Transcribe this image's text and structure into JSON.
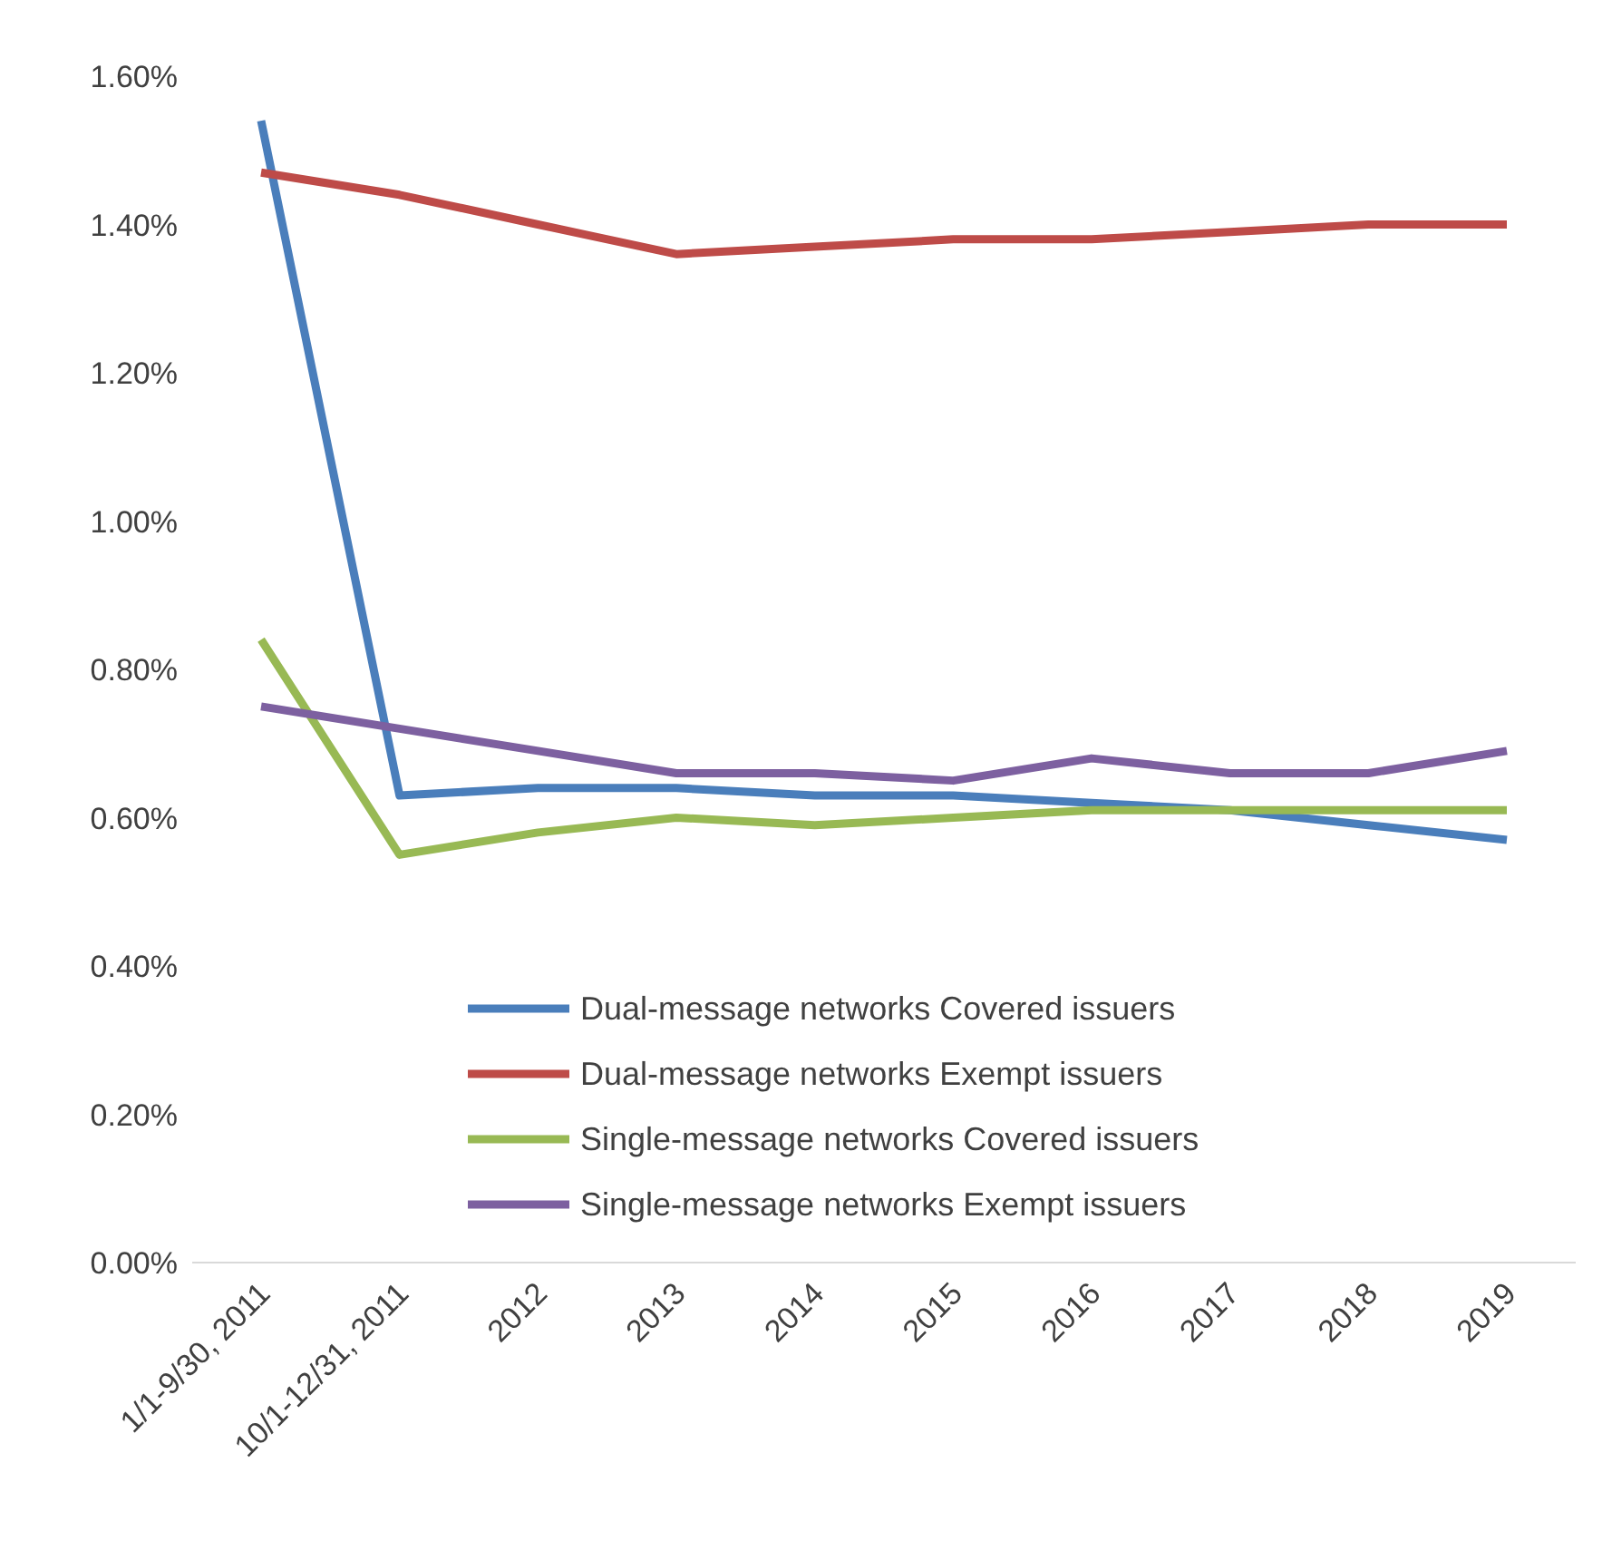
{
  "chart_data": {
    "type": "line",
    "categories": [
      "1/1-9/30, 2011",
      "10/1-12/31, 2011",
      "2012",
      "2013",
      "2014",
      "2015",
      "2016",
      "2017",
      "2018",
      "2019"
    ],
    "series": [
      {
        "name": "Dual-message networks Covered issuers",
        "color": "#4a7ebb",
        "values": [
          1.54,
          0.63,
          0.64,
          0.64,
          0.63,
          0.63,
          0.62,
          0.61,
          0.59,
          0.57
        ]
      },
      {
        "name": "Dual-message networks Exempt issuers",
        "color": "#be4b48",
        "values": [
          1.47,
          1.44,
          1.4,
          1.36,
          1.37,
          1.38,
          1.38,
          1.39,
          1.4,
          1.4
        ]
      },
      {
        "name": "Single-message networks Covered issuers",
        "color": "#98b954",
        "values": [
          0.84,
          0.55,
          0.58,
          0.6,
          0.59,
          0.6,
          0.61,
          0.61,
          0.61,
          0.61
        ]
      },
      {
        "name": "Single-message networks Exempt issuers",
        "color": "#7d60a0",
        "values": [
          0.75,
          0.72,
          0.69,
          0.66,
          0.66,
          0.65,
          0.68,
          0.66,
          0.66,
          0.69
        ]
      }
    ],
    "ylim": [
      0,
      1.6
    ],
    "yticks": [
      {
        "value": 0,
        "label": "0.00%"
      },
      {
        "value": 0.2,
        "label": "0.20%"
      },
      {
        "value": 0.4,
        "label": "0.40%"
      },
      {
        "value": 0.6,
        "label": "0.60%"
      },
      {
        "value": 0.8,
        "label": "0.80%"
      },
      {
        "value": 1.0,
        "label": "1.00%"
      },
      {
        "value": 1.2,
        "label": "1.20%"
      },
      {
        "value": 1.4,
        "label": "1.40%"
      },
      {
        "value": 1.6,
        "label": "1.60%"
      }
    ],
    "grid": false,
    "legend": "bottom",
    "marker": "none",
    "line_style": "solid"
  }
}
